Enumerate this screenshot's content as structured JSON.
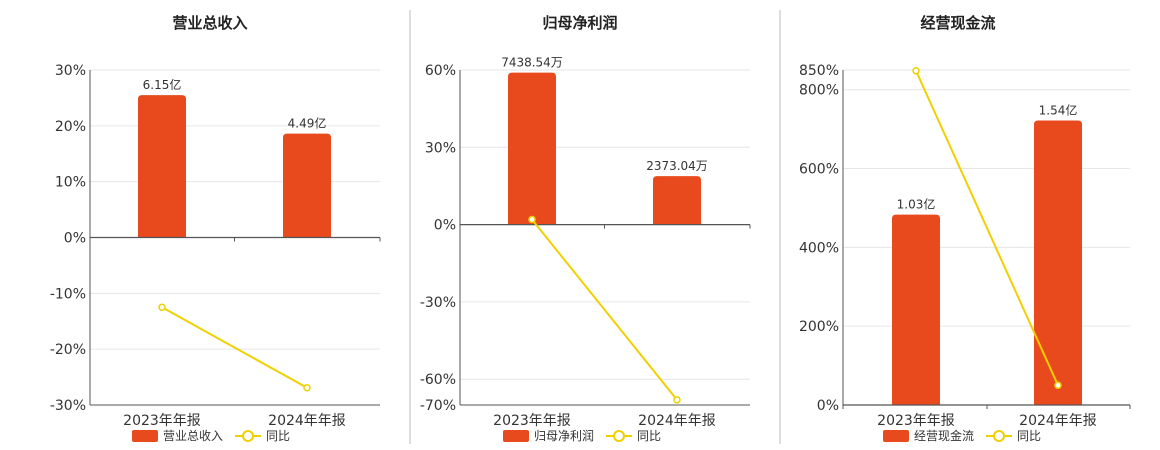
{
  "colors": {
    "bar": "#e8491d",
    "line": "#f0d000",
    "grid": "#e6e6e6",
    "axis": "#555555",
    "divider": "#bbbbbb"
  },
  "chart_data": [
    {
      "type": "bar",
      "title": "营业总收入",
      "categories": [
        "2023年年报",
        "2024年年报"
      ],
      "series": [
        {
          "name": "营业总收入",
          "type": "bar",
          "values": [
            25.5,
            18.6
          ],
          "labels": [
            "6.15亿",
            "4.49亿"
          ]
        },
        {
          "name": "同比",
          "type": "line",
          "values": [
            -12.5,
            -26.9
          ]
        }
      ],
      "ylim": [
        -30,
        30
      ],
      "yticks": [
        30,
        20,
        10,
        0,
        -10,
        -20,
        -30
      ],
      "ytick_labels": [
        "30%",
        "20%",
        "10%",
        "0%",
        "-10%",
        "-20%",
        "-30%"
      ],
      "grid": true,
      "legend": "bottom"
    },
    {
      "type": "bar",
      "title": "归母净利润",
      "categories": [
        "2023年年报",
        "2024年年报"
      ],
      "series": [
        {
          "name": "归母净利润",
          "type": "bar",
          "values": [
            59,
            18.8
          ],
          "labels": [
            "7438.54万",
            "2373.04万"
          ]
        },
        {
          "name": "同比",
          "type": "line",
          "values": [
            2,
            -68
          ]
        }
      ],
      "ylim": [
        -70,
        60
      ],
      "yticks": [
        60,
        30,
        0,
        -30,
        -60,
        -70
      ],
      "ytick_labels": [
        "60%",
        "30%",
        "0%",
        "-30%",
        "-60%",
        "-70%"
      ],
      "grid": true,
      "legend": "bottom"
    },
    {
      "type": "bar",
      "title": "经营现金流",
      "categories": [
        "2023年年报",
        "2024年年报"
      ],
      "series": [
        {
          "name": "经营现金流",
          "type": "bar",
          "values": [
            483,
            722
          ],
          "labels": [
            "1.03亿",
            "1.54亿"
          ]
        },
        {
          "name": "同比",
          "type": "line",
          "values": [
            848,
            50
          ]
        }
      ],
      "ylim": [
        0,
        850
      ],
      "yticks": [
        850,
        800,
        600,
        400,
        200,
        0
      ],
      "ytick_labels": [
        "850%",
        "800%",
        "600%",
        "400%",
        "200%",
        "0%"
      ],
      "grid": true,
      "legend": "bottom"
    }
  ]
}
